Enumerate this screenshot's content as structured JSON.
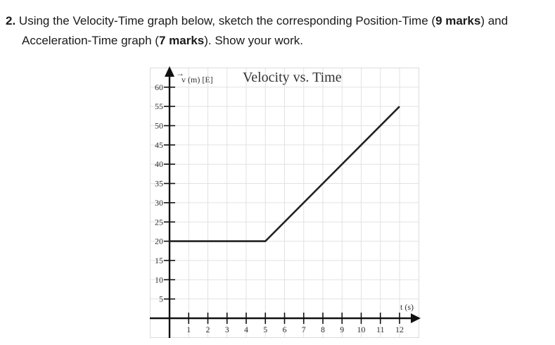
{
  "question": {
    "number": "2.",
    "text_part1": "Using the Velocity-Time graph below, sketch the corresponding Position-Time (",
    "marks1": "9 marks",
    "text_part2": ") and",
    "text_line2_part1": "Acceleration-Time graph (",
    "marks2": "7 marks",
    "text_line2_part2": "). Show your work."
  },
  "chart_data": {
    "type": "line",
    "title": "Velocity vs. Time",
    "xlabel": "t (s)",
    "ylabel": "v (m) [E]",
    "x_ticks": [
      1,
      2,
      3,
      4,
      5,
      6,
      7,
      8,
      9,
      10,
      11,
      12
    ],
    "y_ticks": [
      5,
      10,
      15,
      20,
      25,
      30,
      35,
      40,
      45,
      50,
      55,
      60
    ],
    "xlim": [
      0,
      12
    ],
    "ylim": [
      0,
      60
    ],
    "grid": true,
    "series": [
      {
        "name": "velocity",
        "x": [
          0,
          5,
          12
        ],
        "y": [
          20,
          20,
          55
        ]
      }
    ]
  },
  "graph": {
    "title": "Velocity vs. Time",
    "y_label": "v (m) [E]",
    "y_arrow": "→",
    "x_label": "t (s)",
    "x_tick_labels": [
      "1",
      "2",
      "3",
      "4",
      "5",
      "6",
      "7",
      "8",
      "9",
      "10",
      "11",
      "12"
    ],
    "y_tick_labels": [
      "5",
      "10",
      "15",
      "20",
      "25",
      "30",
      "35",
      "40",
      "45",
      "50",
      "55",
      "60"
    ]
  }
}
